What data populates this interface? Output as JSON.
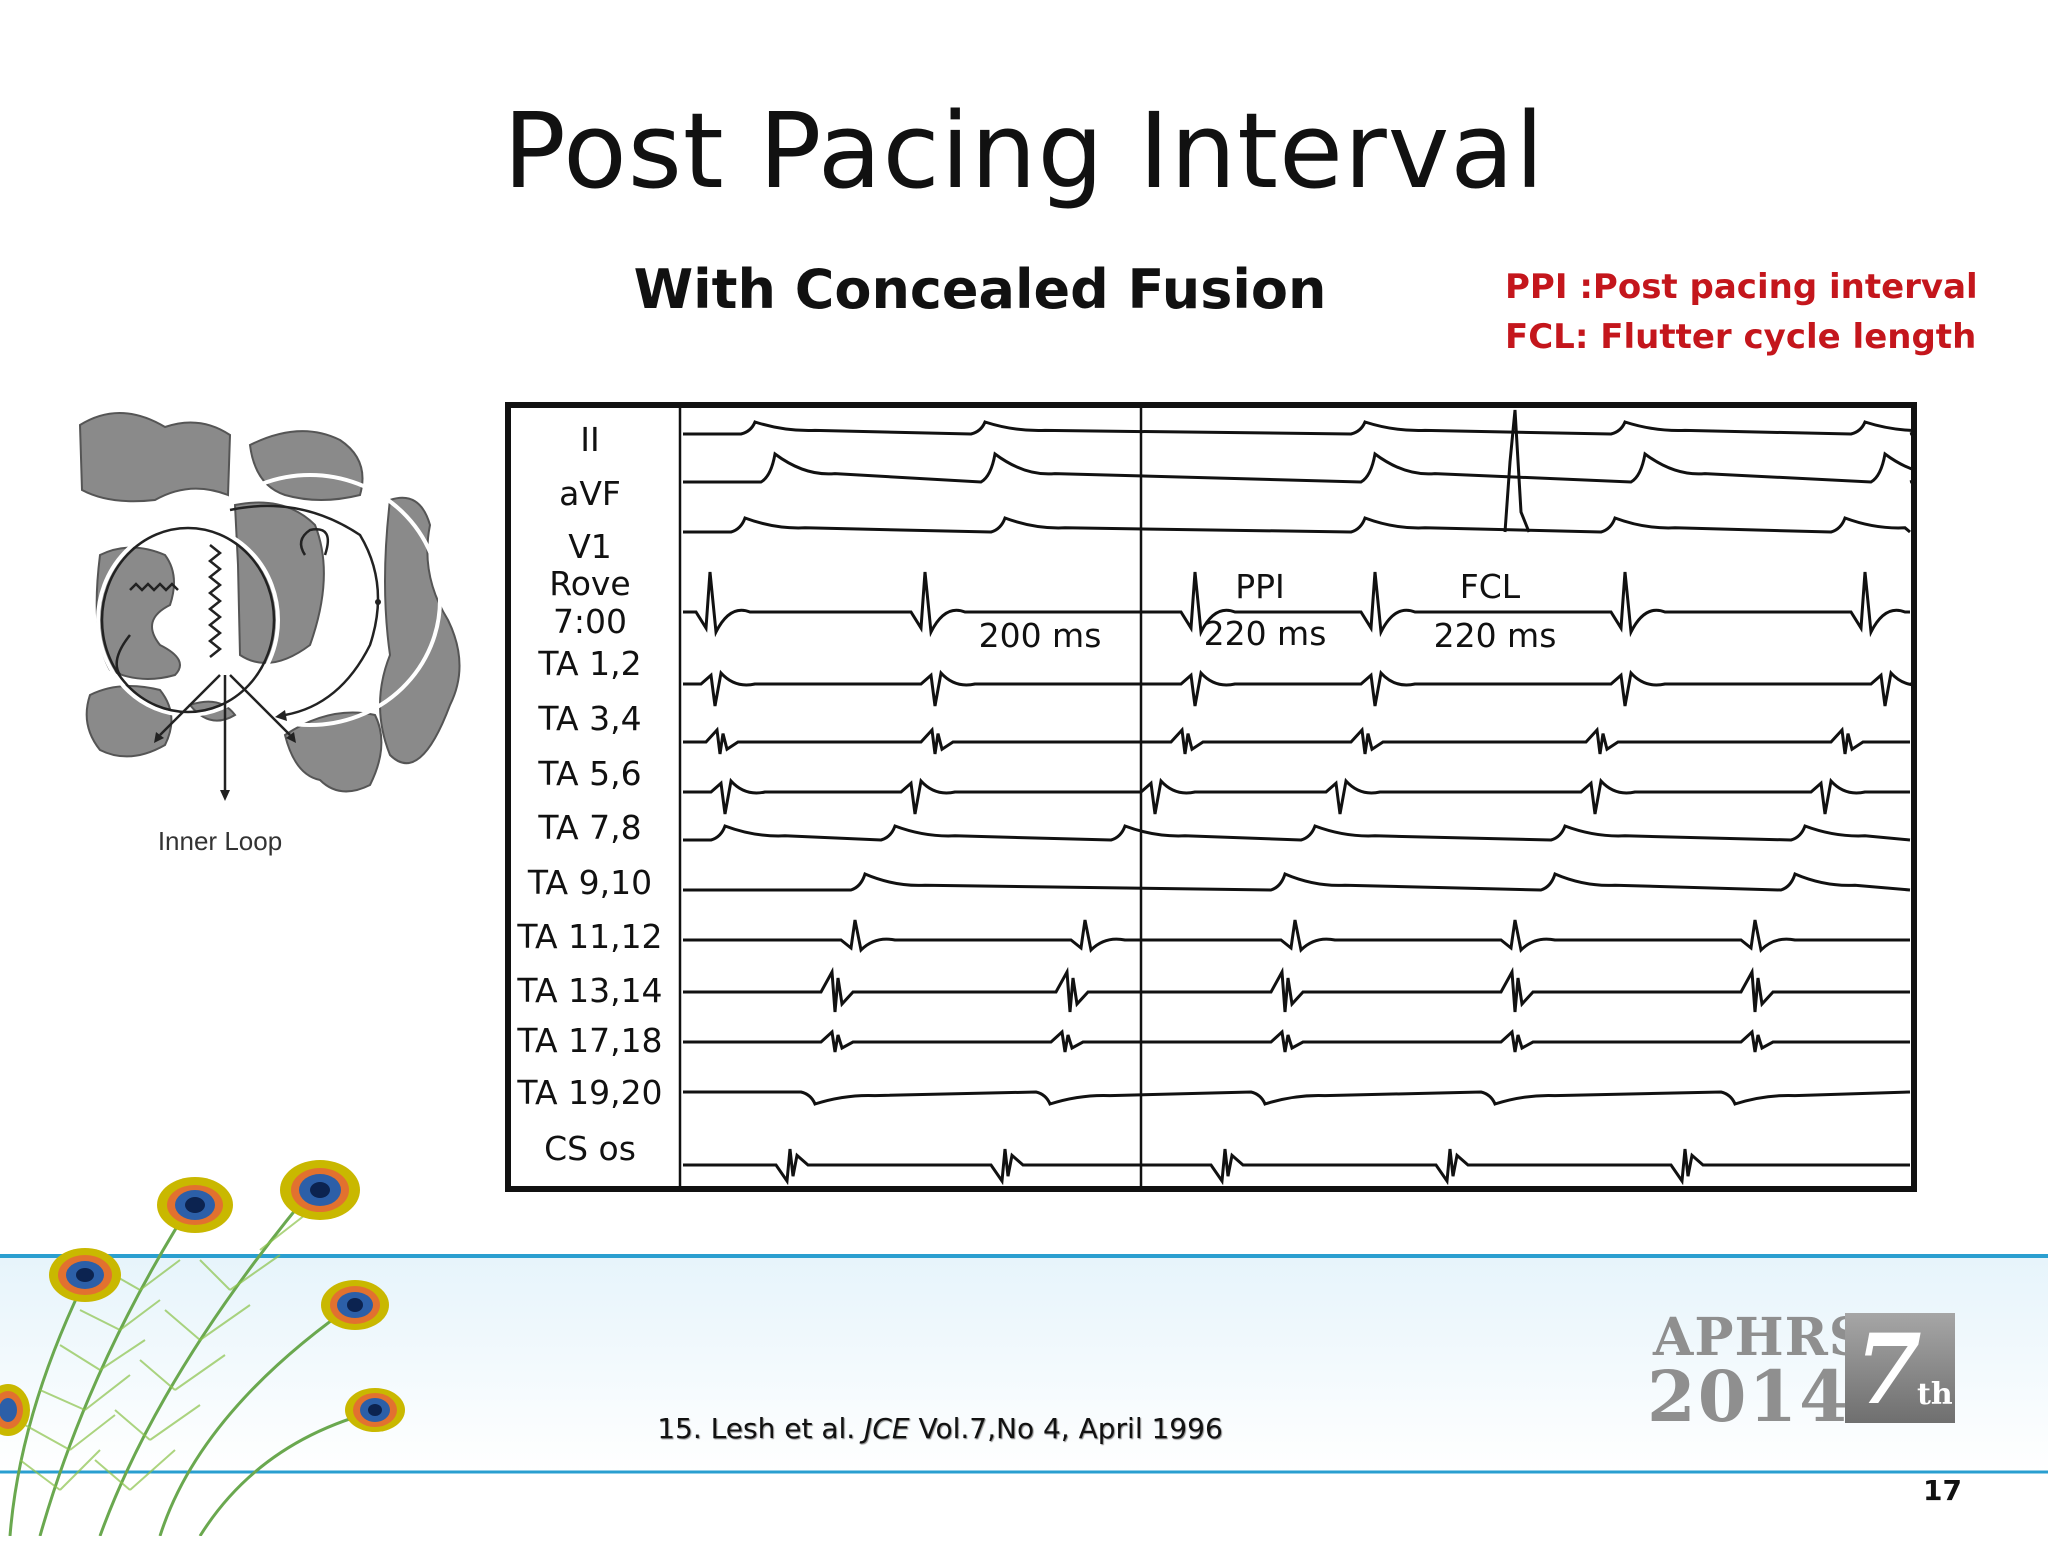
{
  "slide": {
    "title": "Post Pacing Interval",
    "subtitle": "With Concealed Fusion",
    "definitions": [
      "PPI :Post pacing interval",
      "FCL: Flutter cycle length"
    ],
    "definitions_color": "#c4161c",
    "diagram_caption": "Inner Loop",
    "citation": {
      "prefix": "15. Lesh et al.",
      "journal": "JCE",
      "suffix": "Vol.7,No 4, April 1996"
    },
    "logo": {
      "line1": "APHRS",
      "line2": "2014",
      "number": "7",
      "superscript": "th"
    },
    "page_number": "17",
    "band_color": "#2a9fd0"
  },
  "ecg": {
    "leads": [
      "II",
      "aVF",
      "V1",
      "Rove",
      "7:00",
      "TA 1,2",
      "TA 3,4",
      "TA 5,6",
      "TA 7,8",
      "TA 9,10",
      "TA 11,12",
      "TA 13,14",
      "TA 17,18",
      "TA 19,20",
      "CS os"
    ],
    "annotations": {
      "interval_a": "200 ms",
      "ppi_label": "PPI",
      "ppi_value": "220 ms",
      "fcl_label": "FCL",
      "fcl_value": "220 ms"
    }
  }
}
